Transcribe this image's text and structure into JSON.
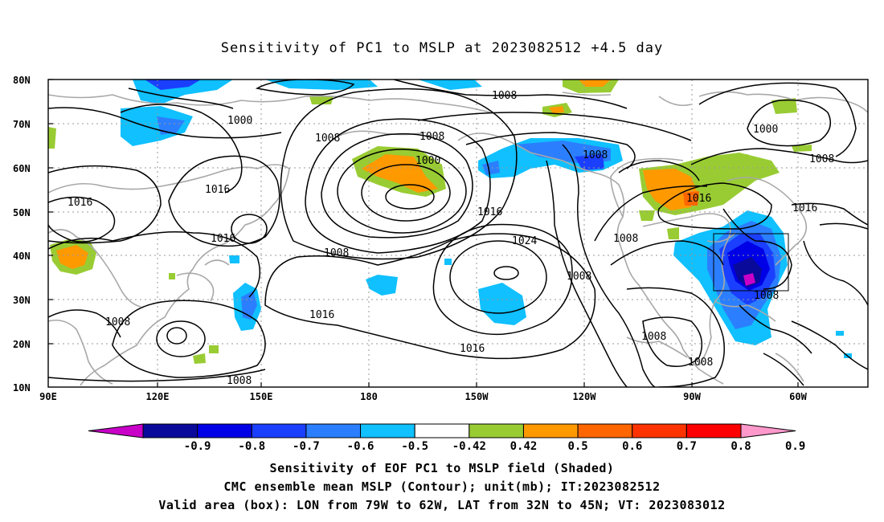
{
  "title": "Sensitivity of PC1 to MSLP at 2023082512 +4.5 day",
  "lat_labels": [
    "80N",
    "70N",
    "60N",
    "50N",
    "40N",
    "30N",
    "20N",
    "10N"
  ],
  "lon_labels": [
    "90E",
    "120E",
    "150E",
    "180",
    "150W",
    "120W",
    "90W",
    "60W"
  ],
  "colorbar": {
    "labels": [
      "-0.9",
      "-0.8",
      "-0.7",
      "-0.6",
      "-0.5",
      "-0.42",
      "0.42",
      "0.5",
      "0.6",
      "0.7",
      "0.8",
      "0.9"
    ],
    "colors": [
      "#c800c8",
      "#0a0a9a",
      "#0000e6",
      "#1a3fff",
      "#2b7fff",
      "#10c0ff",
      "#ffffff",
      "#99cc33",
      "#ff9900",
      "#ff6600",
      "#ff3300",
      "#ff0000",
      "#ff99cc"
    ]
  },
  "contour_labels": [
    "1000",
    "1008",
    "1008",
    "1008",
    "1000",
    "1016",
    "1016",
    "1016",
    "1016",
    "1024",
    "1008",
    "1008",
    "1016",
    "1008",
    "1008",
    "1008",
    "1008",
    "1000",
    "1008",
    "1016",
    "1016",
    "1008",
    "1008"
  ],
  "captions": [
    "Sensitivity of EOF PC1 to MSLP field (Shaded)",
    "CMC ensemble mean MSLP (Contour); unit(mb); IT:2023082512",
    "Valid area (box): LON from 79W to 62W, LAT from 32N to 45N; VT: 2023083012"
  ]
}
